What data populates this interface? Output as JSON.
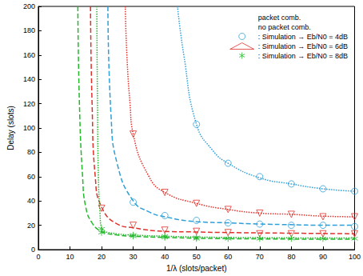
{
  "chart_data": {
    "type": "line",
    "xlabel": "1/λ (slots/packet)",
    "ylabel": "Delay (slots)",
    "xlim": [
      0,
      100
    ],
    "xticks": [
      0,
      10,
      20,
      30,
      40,
      50,
      60,
      70,
      80,
      90,
      100
    ],
    "ylim": [
      0,
      200
    ],
    "yticks": [
      0,
      20,
      40,
      60,
      80,
      100,
      120,
      140,
      160,
      180,
      200
    ],
    "grid": false,
    "legend": "upper right",
    "series": [
      {
        "name": "packet comb.",
        "type": "line",
        "line_style": "dashed",
        "color": "#2e9fd9",
        "x": [
          22,
          23,
          25,
          30,
          35,
          40,
          50,
          60,
          70,
          80,
          90,
          100
        ],
        "values": [
          200,
          110,
          70,
          40,
          31,
          27,
          23,
          22,
          21,
          20.5,
          20,
          20
        ]
      },
      {
        "name": "packet comb.",
        "type": "line",
        "line_style": "dashed",
        "color": "#e0302a",
        "x": [
          16.5,
          17,
          18,
          20,
          25,
          30,
          40,
          50,
          60,
          80,
          100
        ],
        "values": [
          200,
          120,
          60,
          35,
          21,
          18,
          15,
          14.5,
          14,
          13.5,
          13
        ]
      },
      {
        "name": "packet comb.",
        "type": "line",
        "line_style": "dashed",
        "color": "#22b82a",
        "x": [
          12.5,
          13,
          14,
          15,
          17,
          20,
          25,
          30,
          40,
          60,
          100
        ],
        "values": [
          200,
          120,
          60,
          35,
          22,
          15,
          12,
          11,
          10,
          9,
          8.5
        ]
      },
      {
        "name": "no packet comb.",
        "type": "line",
        "line_style": "dotted",
        "color": "#2e9fd9",
        "x": [
          44,
          46,
          50,
          55,
          60,
          70,
          80,
          90,
          100
        ],
        "values": [
          200,
          160,
          103,
          82,
          71,
          59,
          54,
          50,
          48
        ]
      },
      {
        "name": "no packet comb.",
        "type": "line",
        "line_style": "dotted",
        "color": "#e0302a",
        "x": [
          27.5,
          28,
          29,
          30,
          35,
          40,
          50,
          60,
          70,
          80,
          90,
          100
        ],
        "values": [
          200,
          160,
          120,
          95,
          60,
          47,
          38,
          33,
          30,
          29,
          27.5,
          27
        ]
      },
      {
        "name": "no packet comb.",
        "type": "line",
        "line_style": "dotted",
        "color": "#22b82a",
        "x": [
          18.5,
          18.7,
          19,
          19.5,
          20,
          25,
          30,
          40,
          60,
          100
        ],
        "values": [
          200,
          120,
          60,
          30,
          18,
          13,
          12,
          11,
          10,
          9.5
        ]
      },
      {
        "name": ": Simulation → Eb/N0 = 4dB",
        "type": "scatter",
        "marker": "circle",
        "color": "#2e9fd9",
        "x": [
          30,
          40,
          50,
          60,
          70,
          80,
          90,
          100,
          50,
          60,
          70,
          80,
          90,
          100
        ],
        "values": [
          39,
          28,
          24,
          22,
          21,
          20,
          20,
          19,
          103,
          71,
          60,
          54,
          50,
          48
        ]
      },
      {
        "name": ": Simulation → Eb/N0 = 6dB",
        "type": "scatter",
        "marker": "triangle_down",
        "color": "#e0302a",
        "x": [
          20,
          30,
          40,
          50,
          60,
          70,
          80,
          90,
          100,
          30,
          40,
          50,
          60,
          70,
          80,
          90,
          100
        ],
        "values": [
          34,
          20,
          16,
          15,
          14,
          13,
          13,
          13,
          13,
          95,
          47,
          38,
          33,
          30,
          29,
          27,
          27
        ]
      },
      {
        "name": ": Simulation → Eb/N0 = 8dB",
        "type": "scatter",
        "marker": "star",
        "color": "#22b82a",
        "x": [
          20,
          20,
          30,
          30,
          40,
          40,
          50,
          50,
          60,
          70,
          80,
          90,
          100
        ],
        "values": [
          17,
          14,
          12,
          11,
          11,
          10,
          10,
          9,
          9,
          9,
          9,
          9,
          9
        ]
      }
    ]
  }
}
